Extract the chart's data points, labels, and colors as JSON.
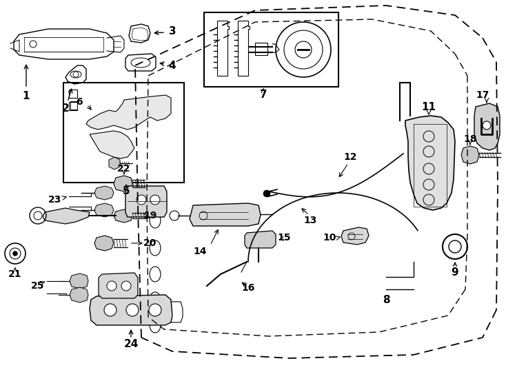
{
  "bg_color": "#ffffff",
  "lc": "#000000",
  "figsize": [
    7.34,
    5.4
  ],
  "dpi": 100
}
